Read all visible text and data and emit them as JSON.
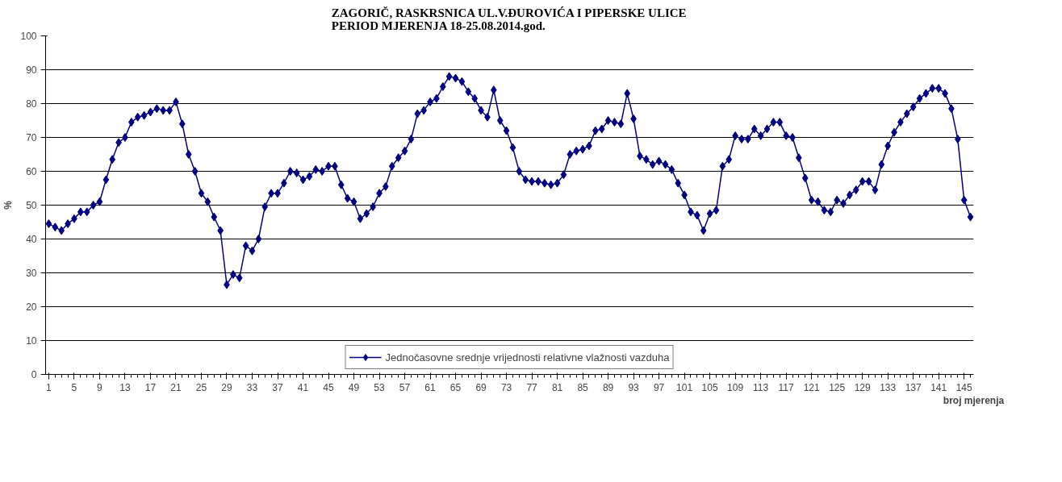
{
  "chart_data": {
    "type": "line",
    "title": "ZAGORIČ, RASKRSNICA UL.V.ĐUROVIĆA I PIPERSKE ULICE\nPERIOD MJERENJA 18-25.08.2014.god.",
    "xlabel": "broj mjerenja",
    "ylabel": "%",
    "x": [
      1,
      2,
      3,
      4,
      5,
      6,
      7,
      8,
      9,
      10,
      11,
      12,
      13,
      14,
      15,
      16,
      17,
      18,
      19,
      20,
      21,
      22,
      23,
      24,
      25,
      26,
      27,
      28,
      29,
      30,
      31,
      32,
      33,
      34,
      35,
      36,
      37,
      38,
      39,
      40,
      41,
      42,
      43,
      44,
      45,
      46,
      47,
      48,
      49,
      50,
      51,
      52,
      53,
      54,
      55,
      56,
      57,
      58,
      59,
      60,
      61,
      62,
      63,
      64,
      65,
      66,
      67,
      68,
      69,
      70,
      71,
      72,
      73,
      74,
      75,
      76,
      77,
      78,
      79,
      80,
      81,
      82,
      83,
      84,
      85,
      86,
      87,
      88,
      89,
      90,
      91,
      92,
      93,
      94,
      95,
      96,
      97,
      98,
      99,
      100,
      101,
      102,
      103,
      104,
      105,
      106,
      107,
      108,
      109,
      110,
      111,
      112,
      113,
      114,
      115,
      116,
      117,
      118,
      119,
      120,
      121,
      122,
      123,
      124,
      125,
      126,
      127,
      128,
      129,
      130,
      131,
      132,
      133,
      134,
      135,
      136,
      137,
      138,
      139,
      140,
      141,
      142,
      143,
      144,
      145,
      146
    ],
    "series": [
      {
        "name": "Jednočasovne srednje vrijednosti relativne vlažnosti vazduha",
        "color": "#000080",
        "values": [
          44.5,
          43.5,
          42.5,
          44.5,
          46,
          48,
          48,
          50,
          51,
          57.5,
          63.5,
          68.5,
          70,
          74.5,
          76,
          76.5,
          77.5,
          78.5,
          78,
          78,
          80.5,
          74,
          65,
          60,
          53.5,
          51,
          46.5,
          42.5,
          26.5,
          29.5,
          28.5,
          38,
          36.5,
          40,
          49.5,
          53.5,
          53.5,
          56.5,
          60,
          59.5,
          57.5,
          58.5,
          60.5,
          60,
          61.5,
          61.5,
          56,
          52,
          51,
          46,
          47.5,
          49.5,
          53.5,
          55.5,
          61.5,
          64,
          66,
          69.5,
          77,
          78,
          80.5,
          81.5,
          85,
          88,
          87.5,
          86.5,
          83.5,
          81.5,
          78,
          76,
          84,
          75,
          72,
          67,
          60,
          57.5,
          57,
          57,
          56.5,
          56,
          56.5,
          59,
          65,
          66,
          66.5,
          67.5,
          72,
          72.5,
          75,
          74.5,
          74,
          83,
          75.5,
          64.5,
          63.5,
          62,
          63,
          62,
          60.5,
          56.5,
          53,
          48,
          47,
          42.5,
          47.5,
          48.5,
          61.5,
          63.5,
          70.5,
          69.5,
          69.5,
          72.5,
          70.5,
          72.5,
          74.5,
          74.5,
          70.5,
          70,
          64,
          58,
          51.5,
          51,
          48.5,
          48,
          51.5,
          50.5,
          53,
          54.5,
          57,
          57,
          54.5,
          62,
          67.5,
          71.5,
          74.5,
          77,
          79,
          81.5,
          83,
          84.5,
          84.5,
          83,
          78.5,
          69.5,
          51.5,
          46.5
        ]
      }
    ],
    "xlim": [
      0.5,
      146.5
    ],
    "xticks": [
      1,
      5,
      9,
      13,
      17,
      21,
      25,
      29,
      33,
      37,
      41,
      45,
      49,
      53,
      57,
      61,
      65,
      69,
      73,
      77,
      81,
      85,
      89,
      93,
      97,
      101,
      105,
      109,
      113,
      117,
      121,
      125,
      129,
      133,
      137,
      141,
      145
    ],
    "ylim": [
      0,
      100
    ],
    "yticks": [
      0,
      10,
      20,
      30,
      40,
      50,
      60,
      70,
      80,
      90,
      100
    ],
    "grid": "y",
    "legend": "bottom",
    "marker": "diamond",
    "line_style": "solid"
  }
}
